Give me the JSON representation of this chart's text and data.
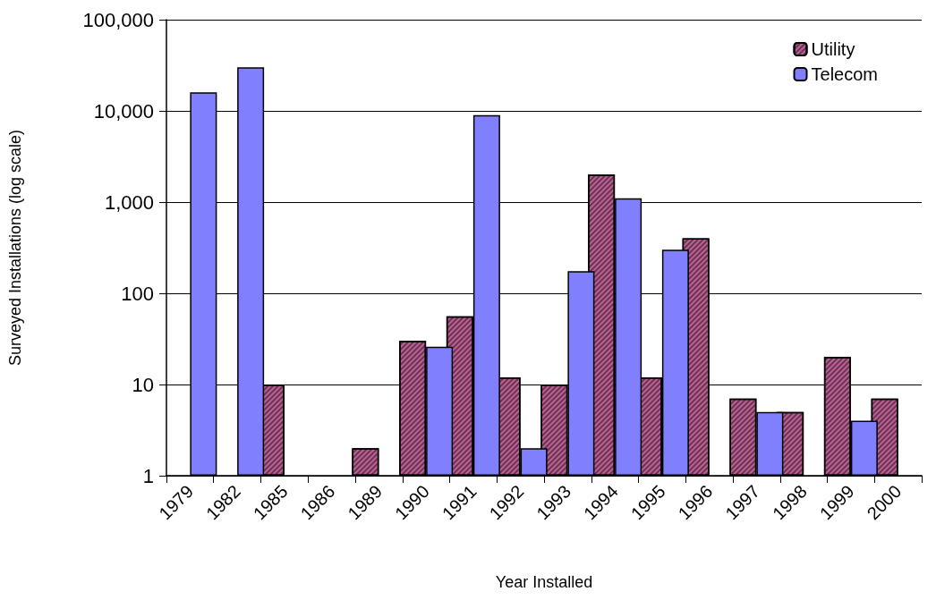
{
  "chart_data": {
    "type": "bar",
    "xlabel": "Year Installed",
    "ylabel": "Surveyed Installations (log scale)",
    "categories": [
      "1979",
      "1982",
      "1985",
      "1986",
      "1989",
      "1990",
      "1991",
      "1992",
      "1993",
      "1994",
      "1995",
      "1996",
      "1997",
      "1998",
      "1999",
      "2000"
    ],
    "series": [
      {
        "name": "Utility",
        "color": "#b3668f",
        "values": [
          null,
          null,
          10,
          null,
          2,
          30,
          56,
          12,
          10,
          2000,
          12,
          400,
          7,
          5,
          20,
          7
        ]
      },
      {
        "name": "Telecom",
        "color": "#8080ff",
        "values": [
          16000,
          30000,
          null,
          null,
          null,
          26,
          9000,
          2,
          175,
          1100,
          300,
          null,
          5,
          null,
          4,
          null
        ]
      }
    ],
    "log": "y",
    "ylim": [
      1,
      100000
    ],
    "yticks": [
      1,
      10,
      100,
      {
        "value": 1000,
        "label": "1,000"
      },
      {
        "value": 10000,
        "label": "10,000"
      },
      {
        "value": 100000,
        "label": "100,000"
      }
    ],
    "grid": "y",
    "legend": "top right"
  }
}
